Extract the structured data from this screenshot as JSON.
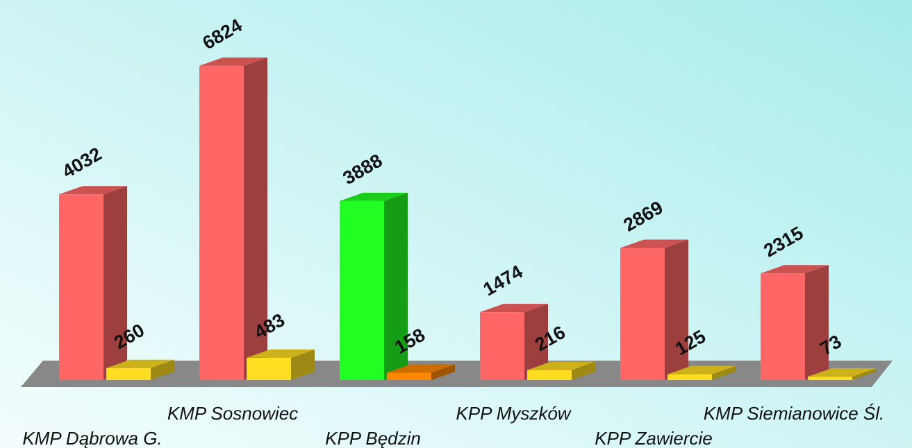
{
  "chart_data": {
    "type": "bar3d",
    "categories": [
      "KMP Dąbrowa G.",
      "KMP Sosnowiec",
      "KPP Będzin",
      "KPP Myszków",
      "KPP Zawiercie",
      "KMP Siemianowice Śl."
    ],
    "series": [
      {
        "colors": [
          "#ff6666",
          "#ff6666",
          "#22ff22",
          "#ff6666",
          "#ff6666",
          "#ff6666"
        ],
        "values": [
          4032,
          6824,
          3888,
          1474,
          2869,
          2315
        ]
      },
      {
        "colors": [
          "#ffdd22",
          "#ffdd22",
          "#ff8800",
          "#ffdd22",
          "#ffdd22",
          "#ffdd22"
        ],
        "values": [
          260,
          483,
          158,
          216,
          125,
          73
        ]
      }
    ]
  }
}
